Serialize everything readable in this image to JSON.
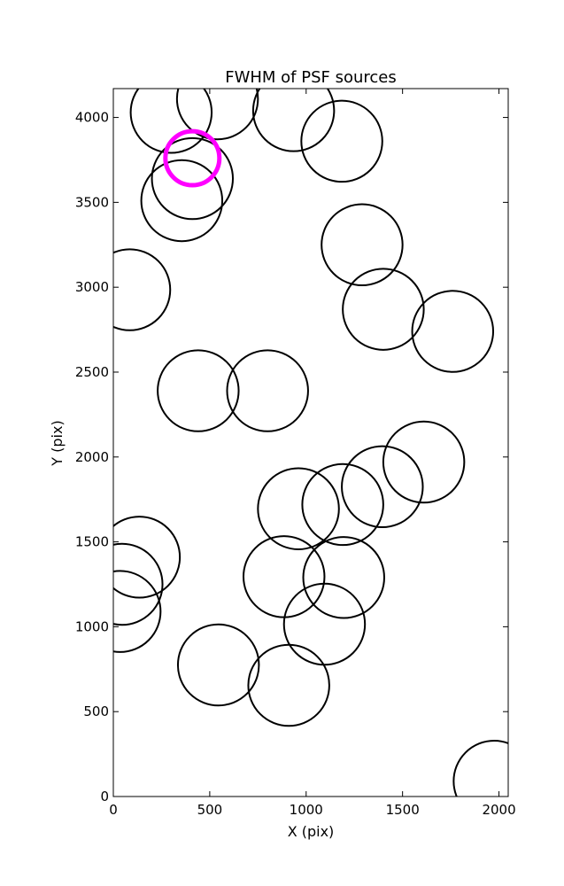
{
  "chart_data": {
    "type": "scatter",
    "title": "FWHM of PSF sources",
    "xlabel": "X (pix)",
    "ylabel": "Y (pix)",
    "xlim": [
      0,
      2048
    ],
    "ylim": [
      0,
      4170
    ],
    "x_ticks": [
      0,
      500,
      1000,
      1500,
      2000
    ],
    "y_ticks": [
      0,
      500,
      1000,
      1500,
      2000,
      2500,
      3000,
      3500,
      4000
    ],
    "grid": false,
    "marker": "open-circle",
    "series": [
      {
        "color": "#000000",
        "points": [
          {
            "x": 300,
            "y": 4030,
            "r": 210
          },
          {
            "x": 540,
            "y": 4110,
            "r": 210
          },
          {
            "x": 935,
            "y": 4040,
            "r": 210
          },
          {
            "x": 1185,
            "y": 3860,
            "r": 210
          },
          {
            "x": 410,
            "y": 3640,
            "r": 210
          },
          {
            "x": 355,
            "y": 3510,
            "r": 210
          },
          {
            "x": 1290,
            "y": 3250,
            "r": 210
          },
          {
            "x": 85,
            "y": 2985,
            "r": 210
          },
          {
            "x": 1400,
            "y": 2870,
            "r": 210
          },
          {
            "x": 1760,
            "y": 2740,
            "r": 210
          },
          {
            "x": 440,
            "y": 2390,
            "r": 210
          },
          {
            "x": 800,
            "y": 2390,
            "r": 210
          },
          {
            "x": 1610,
            "y": 1970,
            "r": 210
          },
          {
            "x": 1395,
            "y": 1825,
            "r": 210
          },
          {
            "x": 1190,
            "y": 1720,
            "r": 210
          },
          {
            "x": 960,
            "y": 1695,
            "r": 210
          },
          {
            "x": 135,
            "y": 1410,
            "r": 210
          },
          {
            "x": 45,
            "y": 1250,
            "r": 210
          },
          {
            "x": 35,
            "y": 1090,
            "r": 210
          },
          {
            "x": 885,
            "y": 1295,
            "r": 210
          },
          {
            "x": 1195,
            "y": 1290,
            "r": 210
          },
          {
            "x": 1095,
            "y": 1015,
            "r": 210
          },
          {
            "x": 545,
            "y": 775,
            "r": 210
          },
          {
            "x": 910,
            "y": 655,
            "r": 210
          },
          {
            "x": 1975,
            "y": 90,
            "r": 210
          }
        ]
      },
      {
        "color": "#ff00ff",
        "highlight": true,
        "points": [
          {
            "x": 410,
            "y": 3760,
            "r": 140
          }
        ]
      }
    ]
  }
}
